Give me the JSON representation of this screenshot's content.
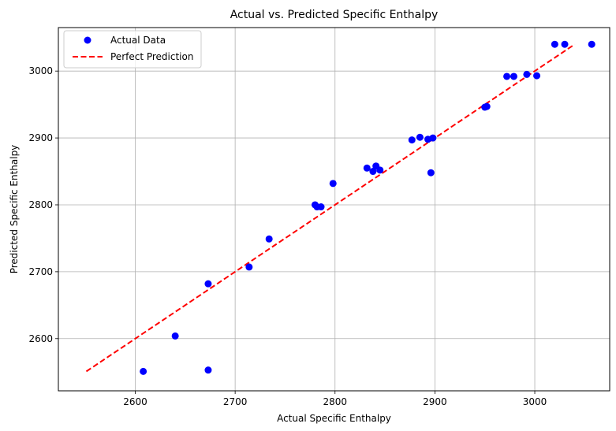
{
  "chart_data": {
    "type": "scatter",
    "title": "Actual vs. Predicted Specific Enthalpy",
    "xlabel": "Actual Specific Enthalpy",
    "ylabel": "Predicted Specific Enthalpy",
    "xlim": [
      2523,
      3075
    ],
    "ylim": [
      2522,
      3065
    ],
    "xticks": [
      2600,
      2700,
      2800,
      2900,
      3000
    ],
    "yticks": [
      2600,
      2700,
      2800,
      2900,
      3000
    ],
    "grid": true,
    "legend_position": "upper-left",
    "series": [
      {
        "name": "Actual Data",
        "kind": "scatter",
        "color": "#0000ff",
        "points": [
          [
            2608,
            2551
          ],
          [
            2640,
            2604
          ],
          [
            2673,
            2553
          ],
          [
            2673,
            2682
          ],
          [
            2714,
            2707
          ],
          [
            2734,
            2749
          ],
          [
            2780,
            2800
          ],
          [
            2782,
            2797
          ],
          [
            2786,
            2797
          ],
          [
            2798,
            2832
          ],
          [
            2832,
            2855
          ],
          [
            2838,
            2850
          ],
          [
            2841,
            2858
          ],
          [
            2845,
            2852
          ],
          [
            2877,
            2897
          ],
          [
            2885,
            2901
          ],
          [
            2893,
            2898
          ],
          [
            2896,
            2848
          ],
          [
            2898,
            2900
          ],
          [
            2950,
            2946
          ],
          [
            2952,
            2947
          ],
          [
            2972,
            2992
          ],
          [
            2979,
            2992
          ],
          [
            2992,
            2995
          ],
          [
            3002,
            2993
          ],
          [
            3020,
            3040
          ],
          [
            3030,
            3040
          ],
          [
            3057,
            3040
          ]
        ]
      },
      {
        "name": "Perfect Prediction",
        "kind": "line",
        "color": "#ff0000",
        "dash": "dashed",
        "points": [
          [
            2551,
            2551
          ],
          [
            3040,
            3040
          ]
        ]
      }
    ]
  }
}
